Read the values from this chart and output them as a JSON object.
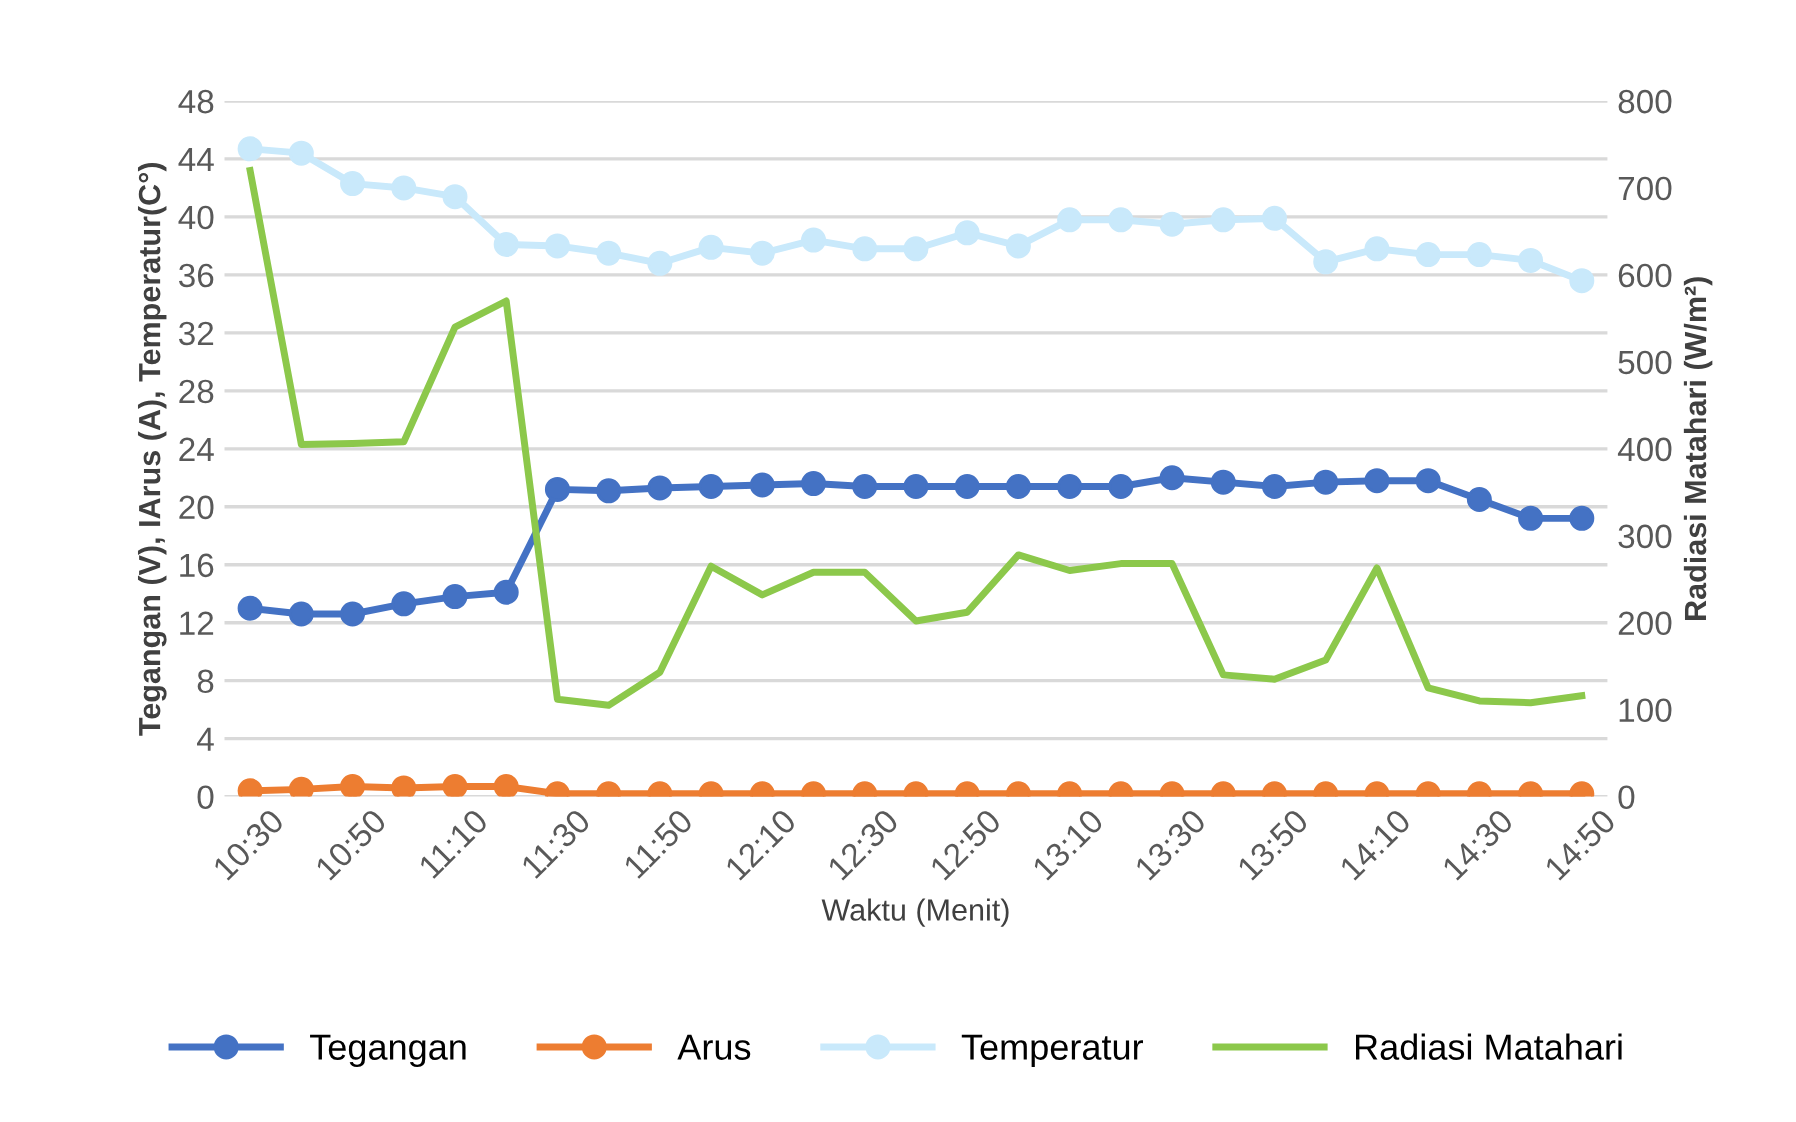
{
  "chart_data": {
    "type": "line",
    "xlabel": "Waktu (Menit)",
    "ylabel": "Tegangan (V), IArus (A), Temperatur(C°)",
    "y2label": "Radiasi Matahari (W/m²)",
    "categories": [
      "10:30",
      null,
      "10:50",
      null,
      "11:10",
      null,
      "11:30",
      null,
      "11:50",
      null,
      "12:10",
      null,
      "12:30",
      null,
      "12:50",
      null,
      "13:10",
      null,
      "13:30",
      null,
      "13:50",
      null,
      "14:10",
      null,
      "14:30",
      null,
      "14:50"
    ],
    "series": [
      {
        "name": "Tegangan",
        "color": "#4472c4",
        "marker": "circle",
        "values": [
          13.0,
          12.6,
          12.6,
          13.3,
          13.8,
          14.1,
          21.2,
          21.1,
          21.3,
          21.4,
          21.5,
          21.6,
          21.4,
          21.4,
          21.4,
          21.4,
          21.4,
          21.4,
          22.0,
          21.7,
          21.4,
          21.7,
          21.8,
          21.8,
          20.5,
          19.2,
          19.2
        ]
      },
      {
        "name": "Arus",
        "color": "#ed7d31",
        "marker": "circle",
        "values": [
          0.4,
          0.5,
          0.7,
          0.6,
          0.7,
          0.7,
          0.2,
          0.2,
          0.2,
          0.2,
          0.2,
          0.2,
          0.2,
          0.2,
          0.2,
          0.2,
          0.2,
          0.2,
          0.2,
          0.2,
          0.2,
          0.2,
          0.2,
          0.2,
          0.2,
          0.2,
          0.2
        ]
      },
      {
        "name": "Temperatur",
        "color": "#c9e9fb",
        "marker": "circle",
        "values": [
          44.7,
          44.4,
          42.3,
          42.0,
          41.4,
          38.1,
          38.0,
          37.5,
          36.8,
          37.9,
          37.5,
          38.4,
          37.8,
          37.8,
          38.9,
          38.0,
          39.8,
          39.8,
          39.5,
          39.8,
          39.9,
          36.9,
          37.8,
          37.4,
          37.4,
          37.0,
          35.6
        ]
      },
      {
        "name": "Radiasi Matahari",
        "color": "#8cc84b",
        "marker": "none",
        "axis": "y2",
        "values": [
          720,
          405,
          406,
          408,
          540,
          570,
          112,
          105,
          143,
          265,
          232,
          258,
          258,
          202,
          212,
          278,
          260,
          268,
          268,
          140,
          135,
          157,
          263,
          125,
          110,
          108,
          116
        ]
      }
    ],
    "ylim": [
      0,
      48
    ],
    "yticks": [
      0,
      4,
      8,
      12,
      16,
      20,
      24,
      28,
      32,
      36,
      40,
      44,
      48
    ],
    "y2lim": [
      0,
      800
    ],
    "y2ticks": [
      0,
      100,
      200,
      300,
      400,
      500,
      600,
      700,
      800
    ],
    "grid": "y",
    "legend": "bottom"
  }
}
